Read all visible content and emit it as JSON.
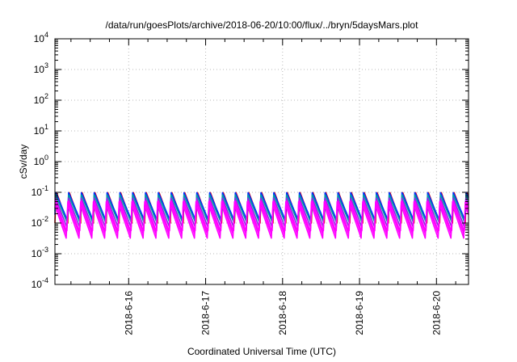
{
  "chart_data": {
    "type": "line",
    "title": "/data/run/goesPlots/archive/2018-06-20/10:00/flux/../bryn/5daysMars.plot",
    "xlabel": "Coordinated Universal Time (UTC)",
    "ylabel": "cSv/day",
    "yscale": "log",
    "ylim": [
      0.0001,
      10000
    ],
    "y_ticks": [
      {
        "value": 0.0001,
        "base": "10",
        "exp": "-4"
      },
      {
        "value": 0.001,
        "base": "10",
        "exp": "-3"
      },
      {
        "value": 0.01,
        "base": "10",
        "exp": "-2"
      },
      {
        "value": 0.1,
        "base": "10",
        "exp": "-1"
      },
      {
        "value": 1,
        "base": "10",
        "exp": "0"
      },
      {
        "value": 10,
        "base": "10",
        "exp": "1"
      },
      {
        "value": 100,
        "base": "10",
        "exp": "2"
      },
      {
        "value": 1000,
        "base": "10",
        "exp": "3"
      },
      {
        "value": 10000,
        "base": "10",
        "exp": "4"
      }
    ],
    "xlim": [
      "2018-06-15T01:00",
      "2018-06-20T10:00"
    ],
    "x_ticks": [
      "2018-6-16",
      "2018-6-17",
      "2018-6-18",
      "2018-6-19",
      "2018-6-20"
    ],
    "grid": true,
    "legend": "none",
    "cycle_hours": 4,
    "series": [
      {
        "color": "#e00000",
        "peak": 0.11,
        "trough": 0.01
      },
      {
        "color": "#0030ff",
        "peak": 0.1,
        "trough": 0.012
      },
      {
        "color": "#00a0a0",
        "peak": 0.085,
        "trough": 0.01
      },
      {
        "color": "#8a2be2",
        "peak": 0.07,
        "trough": 0.007
      },
      {
        "color": "#ff00ff",
        "peak": 0.06,
        "trough": 0.005
      },
      {
        "color": "#ff00ff",
        "peak": 0.05,
        "trough": 0.004
      },
      {
        "color": "#ff00ff",
        "peak": 0.04,
        "trough": 0.003
      }
    ]
  }
}
